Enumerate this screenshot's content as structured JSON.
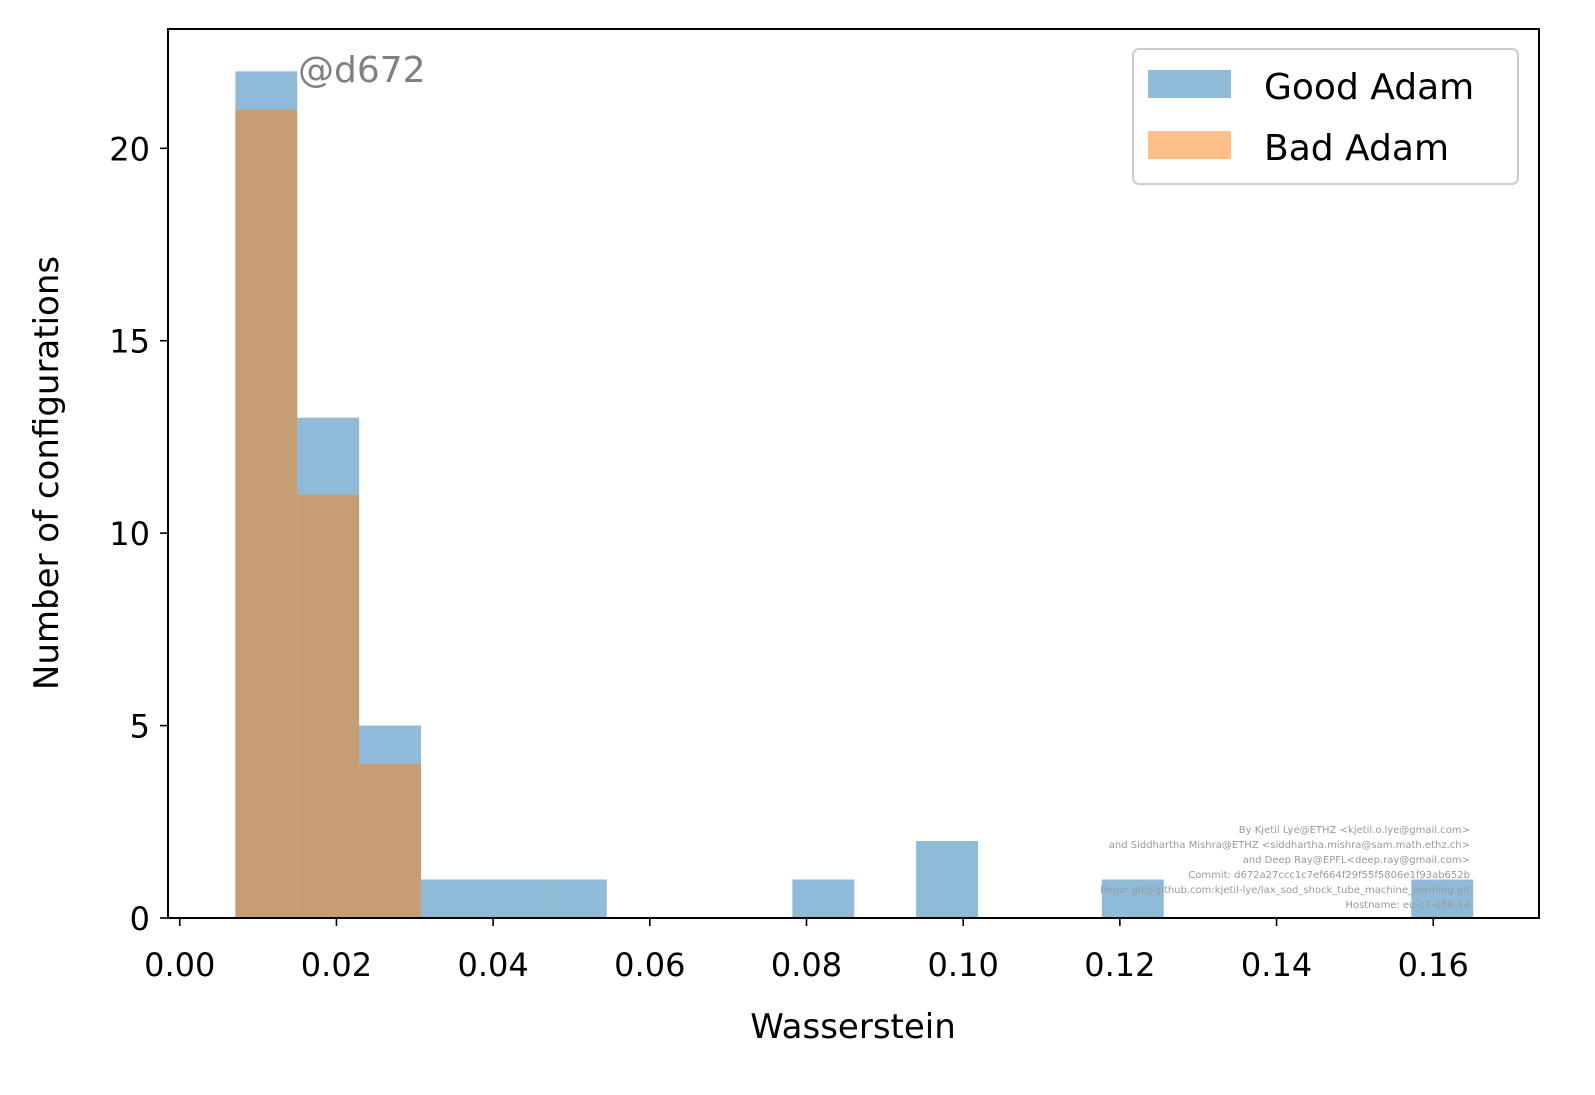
{
  "chart_data": {
    "type": "bar",
    "subtype": "histogram",
    "xlabel": "Wasserstein",
    "ylabel": "Number of configurations",
    "xlim": [
      -0.0015,
      0.1735
    ],
    "ylim": [
      0,
      23.1
    ],
    "xticks": [
      "0.00",
      "0.02",
      "0.04",
      "0.06",
      "0.08",
      "0.10",
      "0.12",
      "0.14",
      "0.16"
    ],
    "xtick_values": [
      0.0,
      0.02,
      0.04,
      0.06,
      0.08,
      0.1,
      0.12,
      0.14,
      0.16
    ],
    "yticks": [
      "0",
      "5",
      "10",
      "15",
      "20"
    ],
    "ytick_values": [
      0,
      5,
      10,
      15,
      20
    ],
    "grid": false,
    "legend_position": "top-right",
    "series": [
      {
        "name": "Good Adam",
        "color": "#1f77b4",
        "alpha": 0.5,
        "bins": [
          {
            "x0": 0.0071,
            "x1": 0.015,
            "count": 22
          },
          {
            "x0": 0.015,
            "x1": 0.0229,
            "count": 13
          },
          {
            "x0": 0.0229,
            "x1": 0.0308,
            "count": 5
          },
          {
            "x0": 0.0308,
            "x1": 0.0387,
            "count": 1
          },
          {
            "x0": 0.0387,
            "x1": 0.0466,
            "count": 1
          },
          {
            "x0": 0.0466,
            "x1": 0.0545,
            "count": 1
          },
          {
            "x0": 0.0782,
            "x1": 0.0861,
            "count": 1
          },
          {
            "x0": 0.094,
            "x1": 0.1019,
            "count": 2
          },
          {
            "x0": 0.1177,
            "x1": 0.1256,
            "count": 1
          },
          {
            "x0": 0.1572,
            "x1": 0.1651,
            "count": 1
          }
        ]
      },
      {
        "name": "Bad Adam",
        "color": "#ff7f0e",
        "alpha": 0.5,
        "bins": [
          {
            "x0": 0.0071,
            "x1": 0.015,
            "count": 21
          },
          {
            "x0": 0.015,
            "x1": 0.0229,
            "count": 11
          },
          {
            "x0": 0.0229,
            "x1": 0.0308,
            "count": 4
          }
        ]
      }
    ],
    "annotation": "@d672",
    "credits": [
      "By Kjetil Lye@ETHZ <kjetil.o.lye@gmail.com>",
      "and Siddhartha Mishra@ETHZ <siddhartha.mishra@sam.math.ethz.ch>",
      "and Deep Ray@EPFL<deep.ray@gmail.com>",
      "Commit: d672a27ccc1c7ef664f29f55f5806e1f93ab652b",
      "Repo: git@github.com:kjetil-lye/lax_sod_shock_tube_machine_learning.git",
      "Hostname: eu-c7-056-14"
    ]
  }
}
